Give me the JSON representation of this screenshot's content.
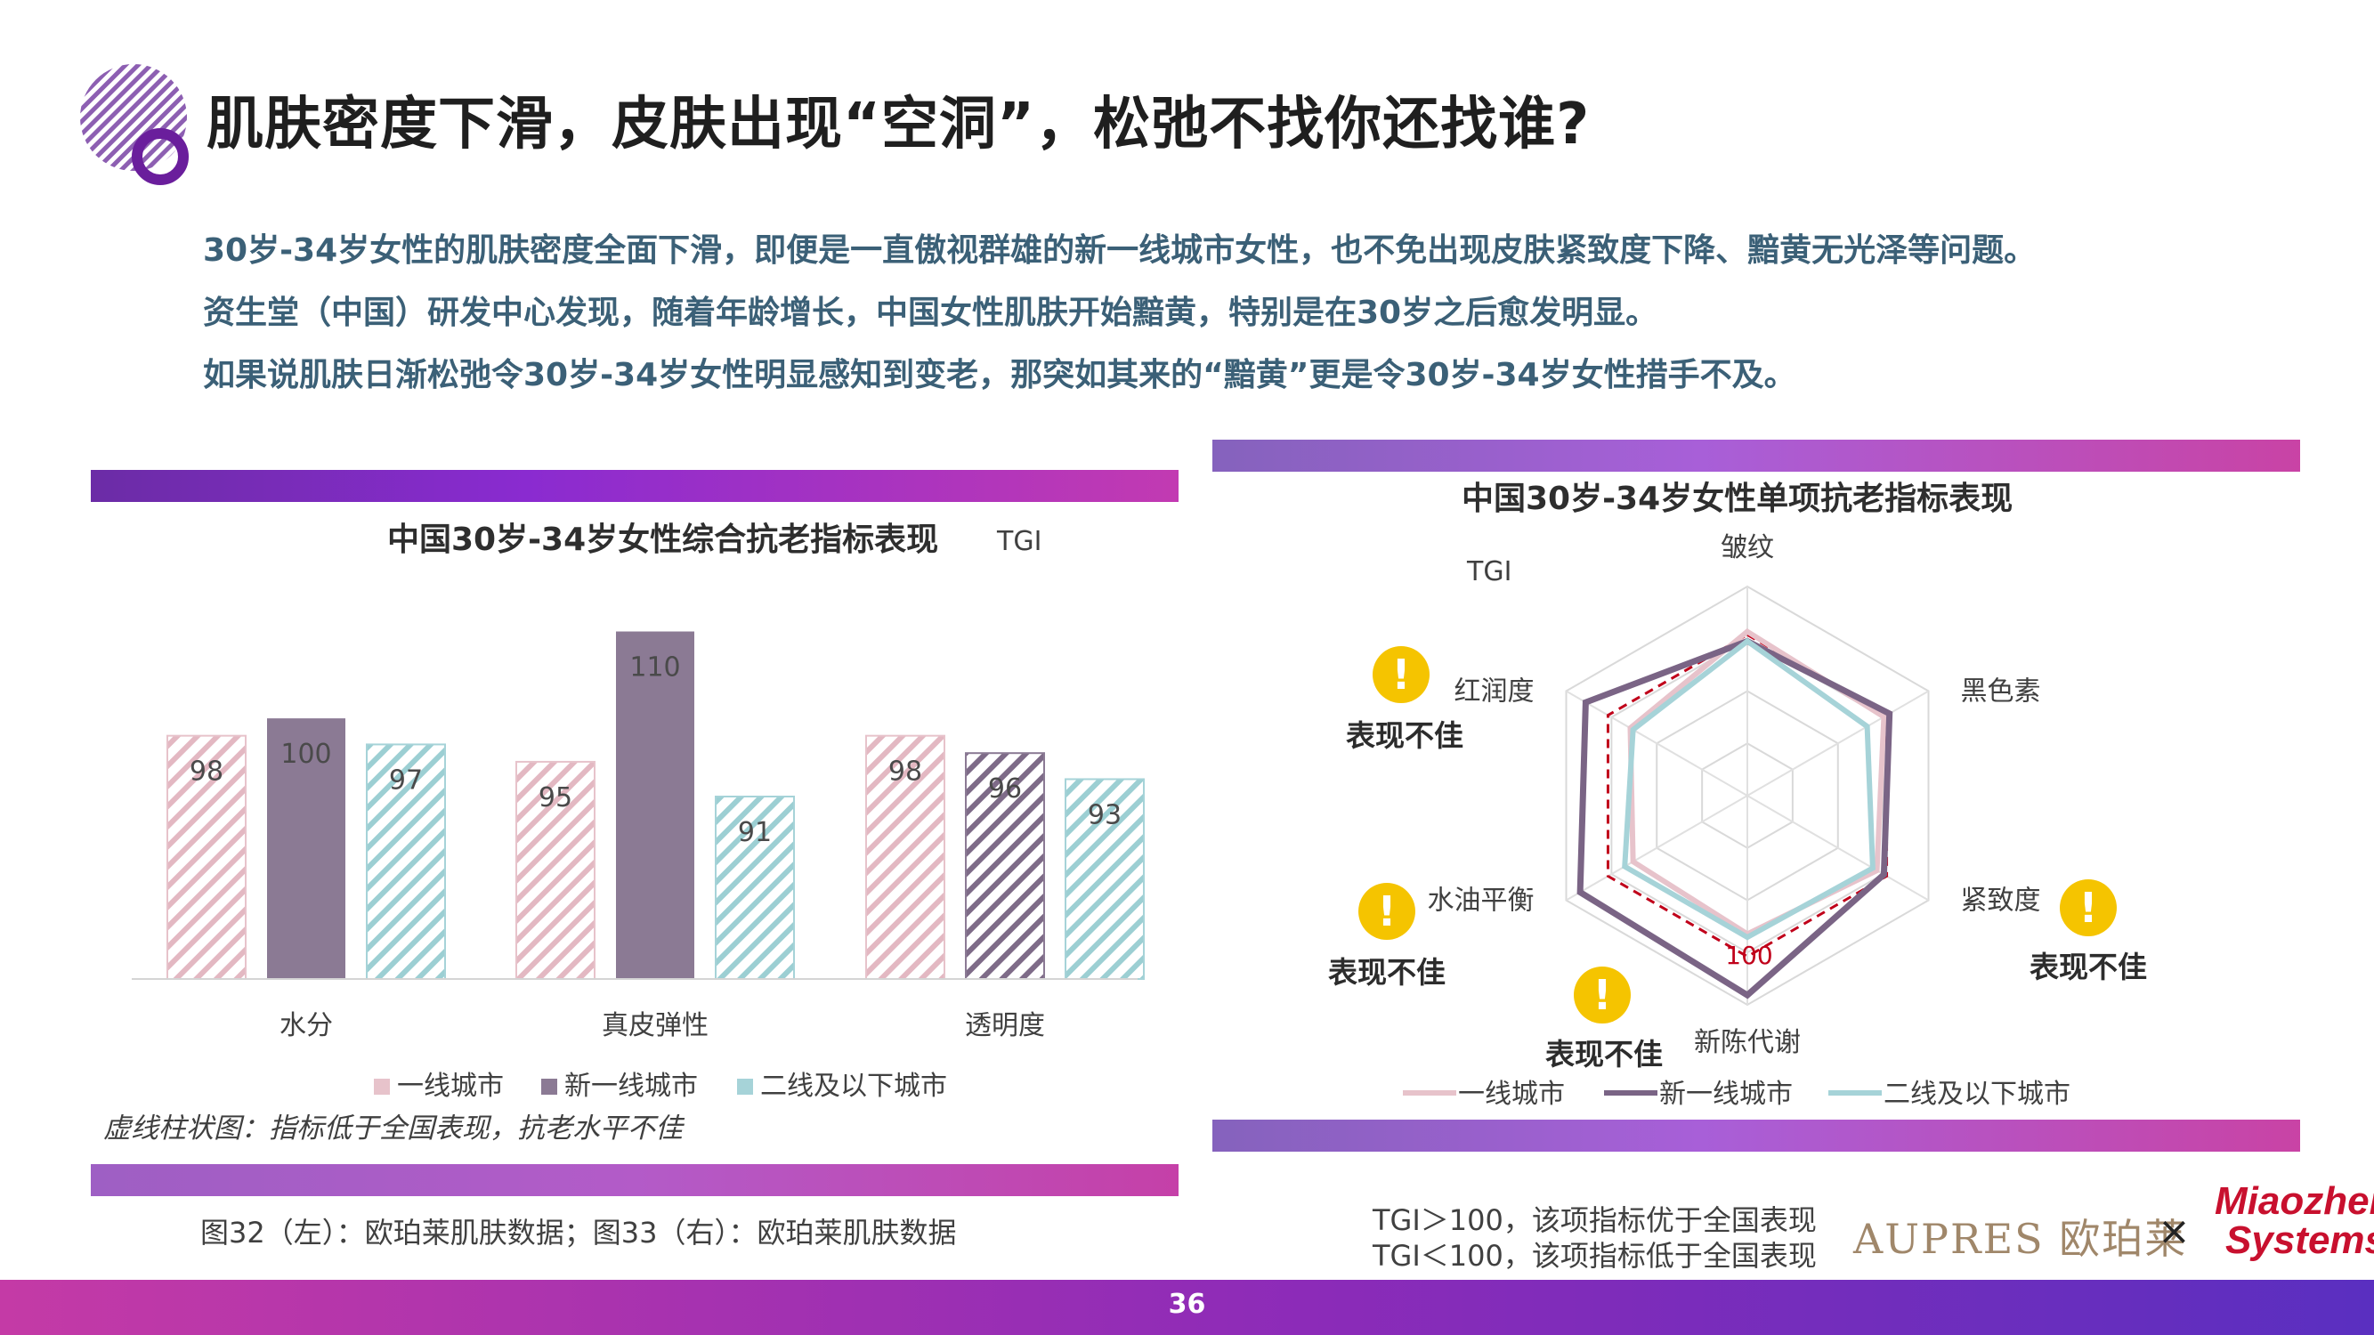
{
  "header": {
    "title": "肌肤密度下滑，皮肤出现“空洞”，松弛不找你还找谁?"
  },
  "intro": {
    "lines": [
      "30岁-34岁女性的肌肤密度全面下滑，即便是一直傲视群雄的新一线城市女性，也不免出现皮肤紧致度下降、黯黄无光泽等问题。",
      "资生堂（中国）研发中心发现，随着年龄增长，中国女性肌肤开始黯黄，特别是在30岁之后愈发明显。",
      "如果说肌肤日渐松弛令30岁-34岁女性明显感知到变老，那突如其来的“黯黄”更是令30岁-34岁女性措手不及。"
    ]
  },
  "left_panel": {
    "note": "虚线柱状图：指标低于全国表现，抗老水平不佳",
    "caption": "图32（左）：欧珀莱肌肤数据；图33（右）：欧珀莱肌肤数据"
  },
  "right_panel": {
    "warning_label": "表现不佳",
    "warning_mark": "!",
    "tgi_note_1": "TGI＞100，该项指标优于全国表现",
    "tgi_note_2": "TGI＜100，该项指标低于全国表现"
  },
  "brands": {
    "aupres": "AUPRES 欧珀莱",
    "times": "×",
    "miaozhen_1": "Miaozhen",
    "miaozhen_2": "Systems",
    "registered": "®"
  },
  "page_number": "36",
  "colors": {
    "pink": "#e7c3cb",
    "purple": "#8b7a94",
    "teal": "#a6d3d8",
    "accent_purple": "#7d2aa8",
    "warning_yellow": "#f5c400",
    "reference_red": "#c0001a"
  },
  "chart_data": [
    {
      "type": "bar",
      "title": "中国30岁-34岁女性综合抗老指标表现",
      "unit_label": "TGI",
      "categories": [
        "水分",
        "真皮弹性",
        "透明度"
      ],
      "series": [
        {
          "name": "一线城市",
          "values": [
            98,
            95,
            98
          ],
          "hatched": [
            true,
            true,
            true
          ]
        },
        {
          "name": "新一线城市",
          "values": [
            100,
            110,
            96
          ],
          "hatched": [
            false,
            false,
            true
          ]
        },
        {
          "name": "二线及以下城市",
          "values": [
            97,
            91,
            93
          ],
          "hatched": [
            true,
            true,
            true
          ]
        }
      ],
      "legend": "bottom",
      "grid": false
    },
    {
      "type": "radar",
      "title": "中国30岁-34岁女性单项抗老指标表现",
      "unit_label": "TGI",
      "axes": [
        "皱纹",
        "黑色素",
        "紧致度",
        "新陈代谢",
        "水油平衡",
        "红润度"
      ],
      "reference": {
        "value": 100,
        "label": "100"
      },
      "range": [
        0,
        130
      ],
      "series": [
        {
          "name": "一线城市",
          "values": [
            102,
            98,
            93,
            86,
            82,
            84
          ]
        },
        {
          "name": "新一线城市",
          "values": [
            96,
            102,
            98,
            124,
            120,
            116
          ]
        },
        {
          "name": "二线及以下城市",
          "values": [
            96,
            86,
            90,
            88,
            88,
            82
          ]
        }
      ],
      "warnings": [
        "红润度",
        "水油平衡",
        "新陈代谢",
        "紧致度"
      ],
      "legend": "bottom"
    }
  ]
}
